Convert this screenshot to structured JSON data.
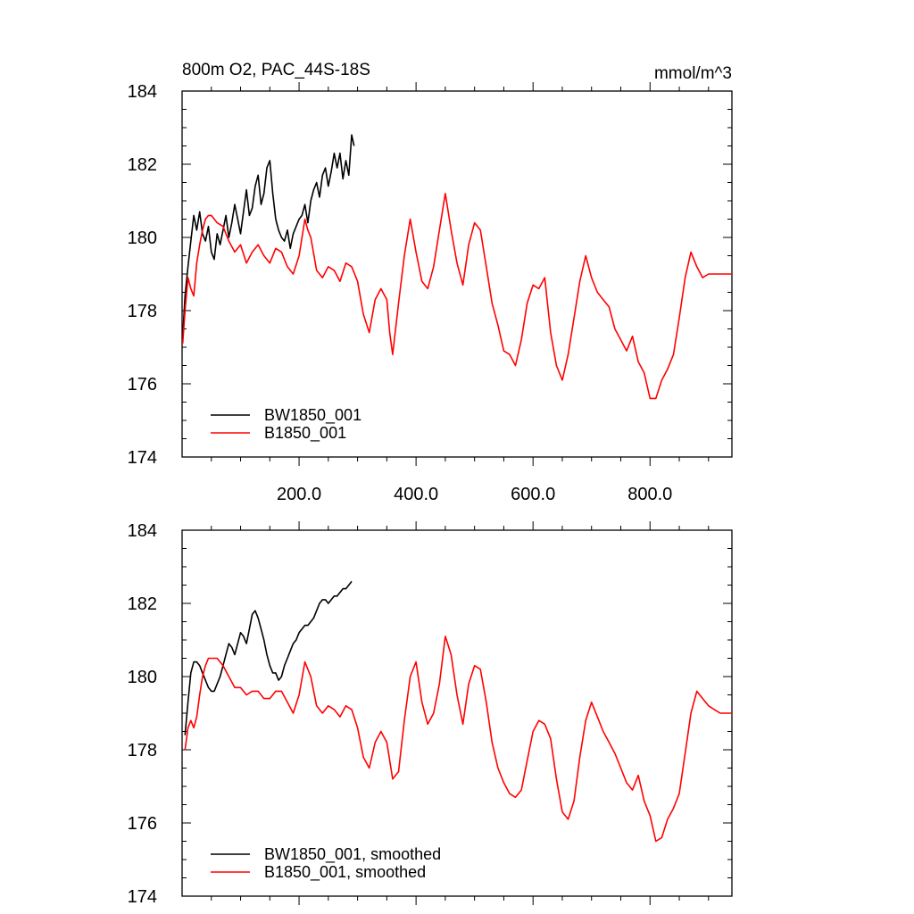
{
  "chart_data": [
    {
      "type": "line",
      "title": "800m O2, PAC_44S-18S",
      "units": "mmol/m^3",
      "xlim": [
        0,
        940
      ],
      "ylim": [
        174,
        184
      ],
      "x_ticks": [
        200,
        400,
        600,
        800
      ],
      "x_tick_labels": [
        "200.0",
        "400.0",
        "600.0",
        "800.0"
      ],
      "y_ticks": [
        174,
        176,
        178,
        180,
        182,
        184
      ],
      "y_tick_labels": [
        "174",
        "176",
        "178",
        "180",
        "182",
        "184"
      ],
      "legend_position": "bottom-left",
      "series": [
        {
          "name": "BW1850_001",
          "color": "#000000",
          "x": [
            1,
            5,
            10,
            15,
            20,
            25,
            30,
            35,
            40,
            45,
            50,
            55,
            60,
            65,
            70,
            75,
            80,
            85,
            90,
            95,
            100,
            105,
            110,
            115,
            120,
            125,
            130,
            135,
            140,
            145,
            150,
            155,
            160,
            165,
            170,
            175,
            180,
            185,
            190,
            195,
            200,
            205,
            210,
            215,
            220,
            225,
            230,
            235,
            240,
            245,
            250,
            255,
            260,
            265,
            270,
            275,
            280,
            285,
            290,
            294
          ],
          "y": [
            177.3,
            178.4,
            179.2,
            179.9,
            180.6,
            180.2,
            180.7,
            180.1,
            179.9,
            180.3,
            179.6,
            179.4,
            180.1,
            179.8,
            180.2,
            180.6,
            180.0,
            180.4,
            180.9,
            180.5,
            180.1,
            180.7,
            181.3,
            180.6,
            180.8,
            181.4,
            181.7,
            180.9,
            181.2,
            181.9,
            182.1,
            181.2,
            180.5,
            180.2,
            180.0,
            179.9,
            180.2,
            179.7,
            180.1,
            180.3,
            180.5,
            180.6,
            180.9,
            180.4,
            181.0,
            181.3,
            181.5,
            181.1,
            181.7,
            181.9,
            181.4,
            181.8,
            182.3,
            181.9,
            182.3,
            181.6,
            182.1,
            181.7,
            182.8,
            182.5
          ]
        },
        {
          "name": "B1850_001",
          "color": "#ff0000",
          "x": [
            1,
            5,
            10,
            15,
            20,
            25,
            30,
            35,
            40,
            45,
            50,
            60,
            70,
            80,
            90,
            100,
            110,
            120,
            130,
            140,
            150,
            160,
            170,
            180,
            190,
            200,
            210,
            215,
            220,
            230,
            240,
            250,
            260,
            270,
            280,
            290,
            300,
            310,
            320,
            330,
            340,
            350,
            355,
            360,
            370,
            380,
            390,
            400,
            410,
            420,
            430,
            440,
            450,
            460,
            470,
            480,
            490,
            500,
            510,
            520,
            530,
            540,
            550,
            560,
            570,
            580,
            590,
            600,
            610,
            620,
            630,
            640,
            650,
            660,
            670,
            680,
            690,
            700,
            710,
            720,
            730,
            740,
            750,
            760,
            770,
            780,
            790,
            800,
            810,
            820,
            830,
            840,
            850,
            860,
            870,
            880,
            890,
            900,
            910,
            920,
            930,
            940
          ],
          "y": [
            177.1,
            178.0,
            178.9,
            178.6,
            178.4,
            179.3,
            179.8,
            180.2,
            180.5,
            180.6,
            180.6,
            180.4,
            180.3,
            179.9,
            179.6,
            179.8,
            179.3,
            179.6,
            179.8,
            179.5,
            179.3,
            179.7,
            179.6,
            179.2,
            179.0,
            179.5,
            180.5,
            180.2,
            180.0,
            179.1,
            178.9,
            179.2,
            179.1,
            178.8,
            179.3,
            179.2,
            178.8,
            177.9,
            177.4,
            178.3,
            178.6,
            178.3,
            177.4,
            176.8,
            178.2,
            179.5,
            180.5,
            179.6,
            178.8,
            178.6,
            179.2,
            180.2,
            181.2,
            180.2,
            179.3,
            178.7,
            179.8,
            180.4,
            180.2,
            179.2,
            178.2,
            177.6,
            176.9,
            176.8,
            176.5,
            177.2,
            178.2,
            178.7,
            178.6,
            178.9,
            177.4,
            176.5,
            176.1,
            176.8,
            177.8,
            178.8,
            179.5,
            178.9,
            178.5,
            178.3,
            178.1,
            177.5,
            177.2,
            176.9,
            177.3,
            176.6,
            176.3,
            175.6,
            175.6,
            176.1,
            176.4,
            176.8,
            177.8,
            178.9,
            179.6,
            179.2,
            178.9,
            179.0,
            179.0,
            179.0,
            179.0,
            179.0
          ]
        }
      ]
    },
    {
      "type": "line",
      "xlim": [
        0,
        940
      ],
      "ylim": [
        174,
        184
      ],
      "y_ticks": [
        174,
        176,
        178,
        180,
        182,
        184
      ],
      "y_tick_labels": [
        "174",
        "176",
        "178",
        "180",
        "182",
        "184"
      ],
      "legend_position": "bottom-left",
      "series": [
        {
          "name": "BW1850_001, smoothed",
          "color": "#000000",
          "x": [
            5,
            10,
            15,
            20,
            25,
            30,
            35,
            40,
            45,
            50,
            55,
            60,
            65,
            70,
            75,
            80,
            85,
            90,
            95,
            100,
            105,
            110,
            115,
            120,
            125,
            130,
            135,
            140,
            145,
            150,
            155,
            160,
            165,
            170,
            175,
            180,
            185,
            190,
            195,
            200,
            205,
            210,
            215,
            220,
            225,
            230,
            235,
            240,
            245,
            250,
            255,
            260,
            265,
            270,
            275,
            280,
            285,
            290
          ],
          "y": [
            178.4,
            179.3,
            180.1,
            180.4,
            180.4,
            180.3,
            180.1,
            179.9,
            179.7,
            179.6,
            179.6,
            179.8,
            180.0,
            180.3,
            180.6,
            180.9,
            180.8,
            180.6,
            180.9,
            181.2,
            181.1,
            180.9,
            181.3,
            181.7,
            181.8,
            181.6,
            181.3,
            181.0,
            180.6,
            180.3,
            180.1,
            180.1,
            179.9,
            180.0,
            180.3,
            180.5,
            180.7,
            180.9,
            181.0,
            181.2,
            181.3,
            181.4,
            181.4,
            181.5,
            181.6,
            181.8,
            182.0,
            182.1,
            182.1,
            182.0,
            182.1,
            182.2,
            182.2,
            182.3,
            182.4,
            182.4,
            182.5,
            182.6
          ]
        },
        {
          "name": "B1850_001, smoothed",
          "color": "#ff0000",
          "x": [
            5,
            10,
            15,
            20,
            25,
            30,
            35,
            40,
            45,
            50,
            60,
            70,
            80,
            90,
            100,
            110,
            120,
            130,
            140,
            150,
            160,
            170,
            180,
            190,
            200,
            210,
            220,
            230,
            240,
            250,
            260,
            270,
            280,
            290,
            300,
            310,
            320,
            330,
            340,
            350,
            360,
            370,
            380,
            390,
            400,
            410,
            420,
            430,
            440,
            450,
            460,
            470,
            480,
            490,
            500,
            510,
            520,
            530,
            540,
            550,
            560,
            570,
            580,
            590,
            600,
            610,
            620,
            630,
            640,
            650,
            660,
            670,
            680,
            690,
            700,
            710,
            720,
            730,
            740,
            750,
            760,
            770,
            780,
            790,
            800,
            810,
            820,
            830,
            840,
            850,
            860,
            870,
            880,
            890,
            900,
            910,
            920,
            930,
            940
          ],
          "y": [
            178.0,
            178.6,
            178.8,
            178.6,
            178.9,
            179.5,
            180.0,
            180.3,
            180.5,
            180.5,
            180.5,
            180.3,
            180.0,
            179.7,
            179.7,
            179.5,
            179.6,
            179.6,
            179.4,
            179.4,
            179.6,
            179.6,
            179.3,
            179.0,
            179.5,
            180.4,
            180.0,
            179.2,
            179.0,
            179.2,
            179.1,
            178.9,
            179.2,
            179.1,
            178.6,
            177.8,
            177.5,
            178.2,
            178.5,
            178.2,
            177.2,
            177.4,
            178.8,
            180.0,
            180.4,
            179.3,
            178.7,
            179.0,
            179.8,
            181.1,
            180.6,
            179.5,
            178.7,
            179.8,
            180.3,
            180.2,
            179.3,
            178.2,
            177.5,
            177.1,
            176.8,
            176.7,
            176.9,
            177.7,
            178.5,
            178.8,
            178.7,
            178.3,
            177.2,
            176.3,
            176.1,
            176.6,
            177.8,
            178.8,
            179.3,
            178.9,
            178.5,
            178.2,
            177.9,
            177.5,
            177.1,
            176.9,
            177.3,
            176.6,
            176.2,
            175.5,
            175.6,
            176.1,
            176.4,
            176.8,
            177.9,
            179.0,
            179.6,
            179.4,
            179.2,
            179.1,
            179.0,
            179.0,
            179.0
          ]
        }
      ]
    }
  ]
}
